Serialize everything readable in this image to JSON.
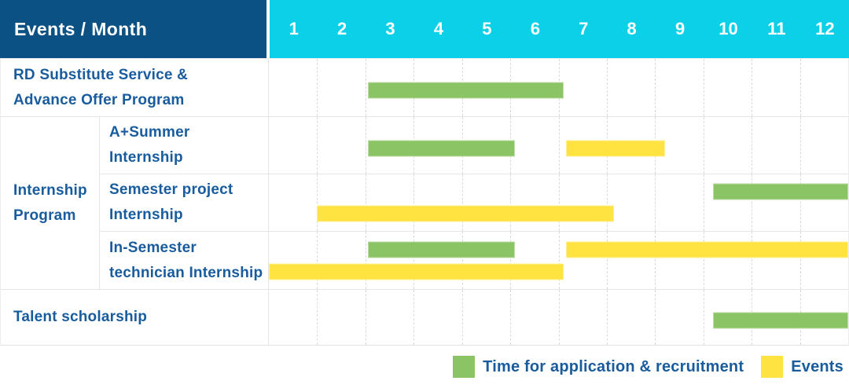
{
  "header": {
    "title": "Events / Month",
    "months": [
      "1",
      "2",
      "3",
      "4",
      "5",
      "6",
      "7",
      "8",
      "9",
      "10",
      "11",
      "12"
    ]
  },
  "colors": {
    "header_bg": "#0B5183",
    "month_header_bg": "#0BD0E8",
    "label_text": "#195C9E",
    "application": "#8BC464",
    "event": "#FFE341"
  },
  "chart_data": {
    "type": "gantt",
    "x_axis": {
      "label": "Month",
      "ticks": [
        "1",
        "2",
        "3",
        "4",
        "5",
        "6",
        "7",
        "8",
        "9",
        "10",
        "11",
        "12"
      ],
      "range": [
        1,
        12
      ]
    },
    "units_note": "bar start/end are in month grid units where 0 = beginning of month 1 and 12 = end of month 12",
    "internship_group": {
      "label": "Internship Program",
      "label_lines": [
        "Internship",
        "Program"
      ]
    },
    "legend": [
      {
        "key": "application",
        "label": "Time for application & recruitment",
        "color": "#8BC464"
      },
      {
        "key": "event",
        "label": "Events",
        "color": "#FFE341"
      }
    ],
    "rows": [
      {
        "group": null,
        "label": "RD Substitute Service & Advance Offer Program",
        "label_lines": [
          "RD Substitute Service &",
          "Advance Offer Program"
        ],
        "bars": [
          {
            "kind": "application",
            "start": 2.05,
            "end": 6.1,
            "line": "single"
          }
        ]
      },
      {
        "group": "Internship Program",
        "label": "A+Summer Internship",
        "label_lines": [
          "A+Summer",
          "Internship"
        ],
        "bars": [
          {
            "kind": "application",
            "start": 2.05,
            "end": 5.1,
            "line": "single"
          },
          {
            "kind": "event",
            "start": 6.15,
            "end": 8.2,
            "line": "single"
          }
        ]
      },
      {
        "group": "Internship Program",
        "label": "Semester project Internship",
        "label_lines": [
          "Semester project",
          "Internship"
        ],
        "bars": [
          {
            "kind": "application",
            "start": 9.2,
            "end": 12,
            "line": "top"
          },
          {
            "kind": "event",
            "start": 1.0,
            "end": 7.15,
            "line": "bottom"
          }
        ]
      },
      {
        "group": "Internship Program",
        "label": "In-Semester technician Internship",
        "label_lines": [
          "In-Semester",
          "technician Internship"
        ],
        "bars": [
          {
            "kind": "application",
            "start": 2.05,
            "end": 5.1,
            "line": "top"
          },
          {
            "kind": "event",
            "start": 6.15,
            "end": 12,
            "line": "top"
          },
          {
            "kind": "event",
            "start": 0,
            "end": 6.1,
            "line": "bottom"
          }
        ]
      },
      {
        "group": null,
        "label": "Talent scholarship",
        "label_lines": [
          "Talent scholarship"
        ],
        "bars": [
          {
            "kind": "application",
            "start": 9.2,
            "end": 12,
            "line": "single"
          }
        ]
      }
    ]
  }
}
